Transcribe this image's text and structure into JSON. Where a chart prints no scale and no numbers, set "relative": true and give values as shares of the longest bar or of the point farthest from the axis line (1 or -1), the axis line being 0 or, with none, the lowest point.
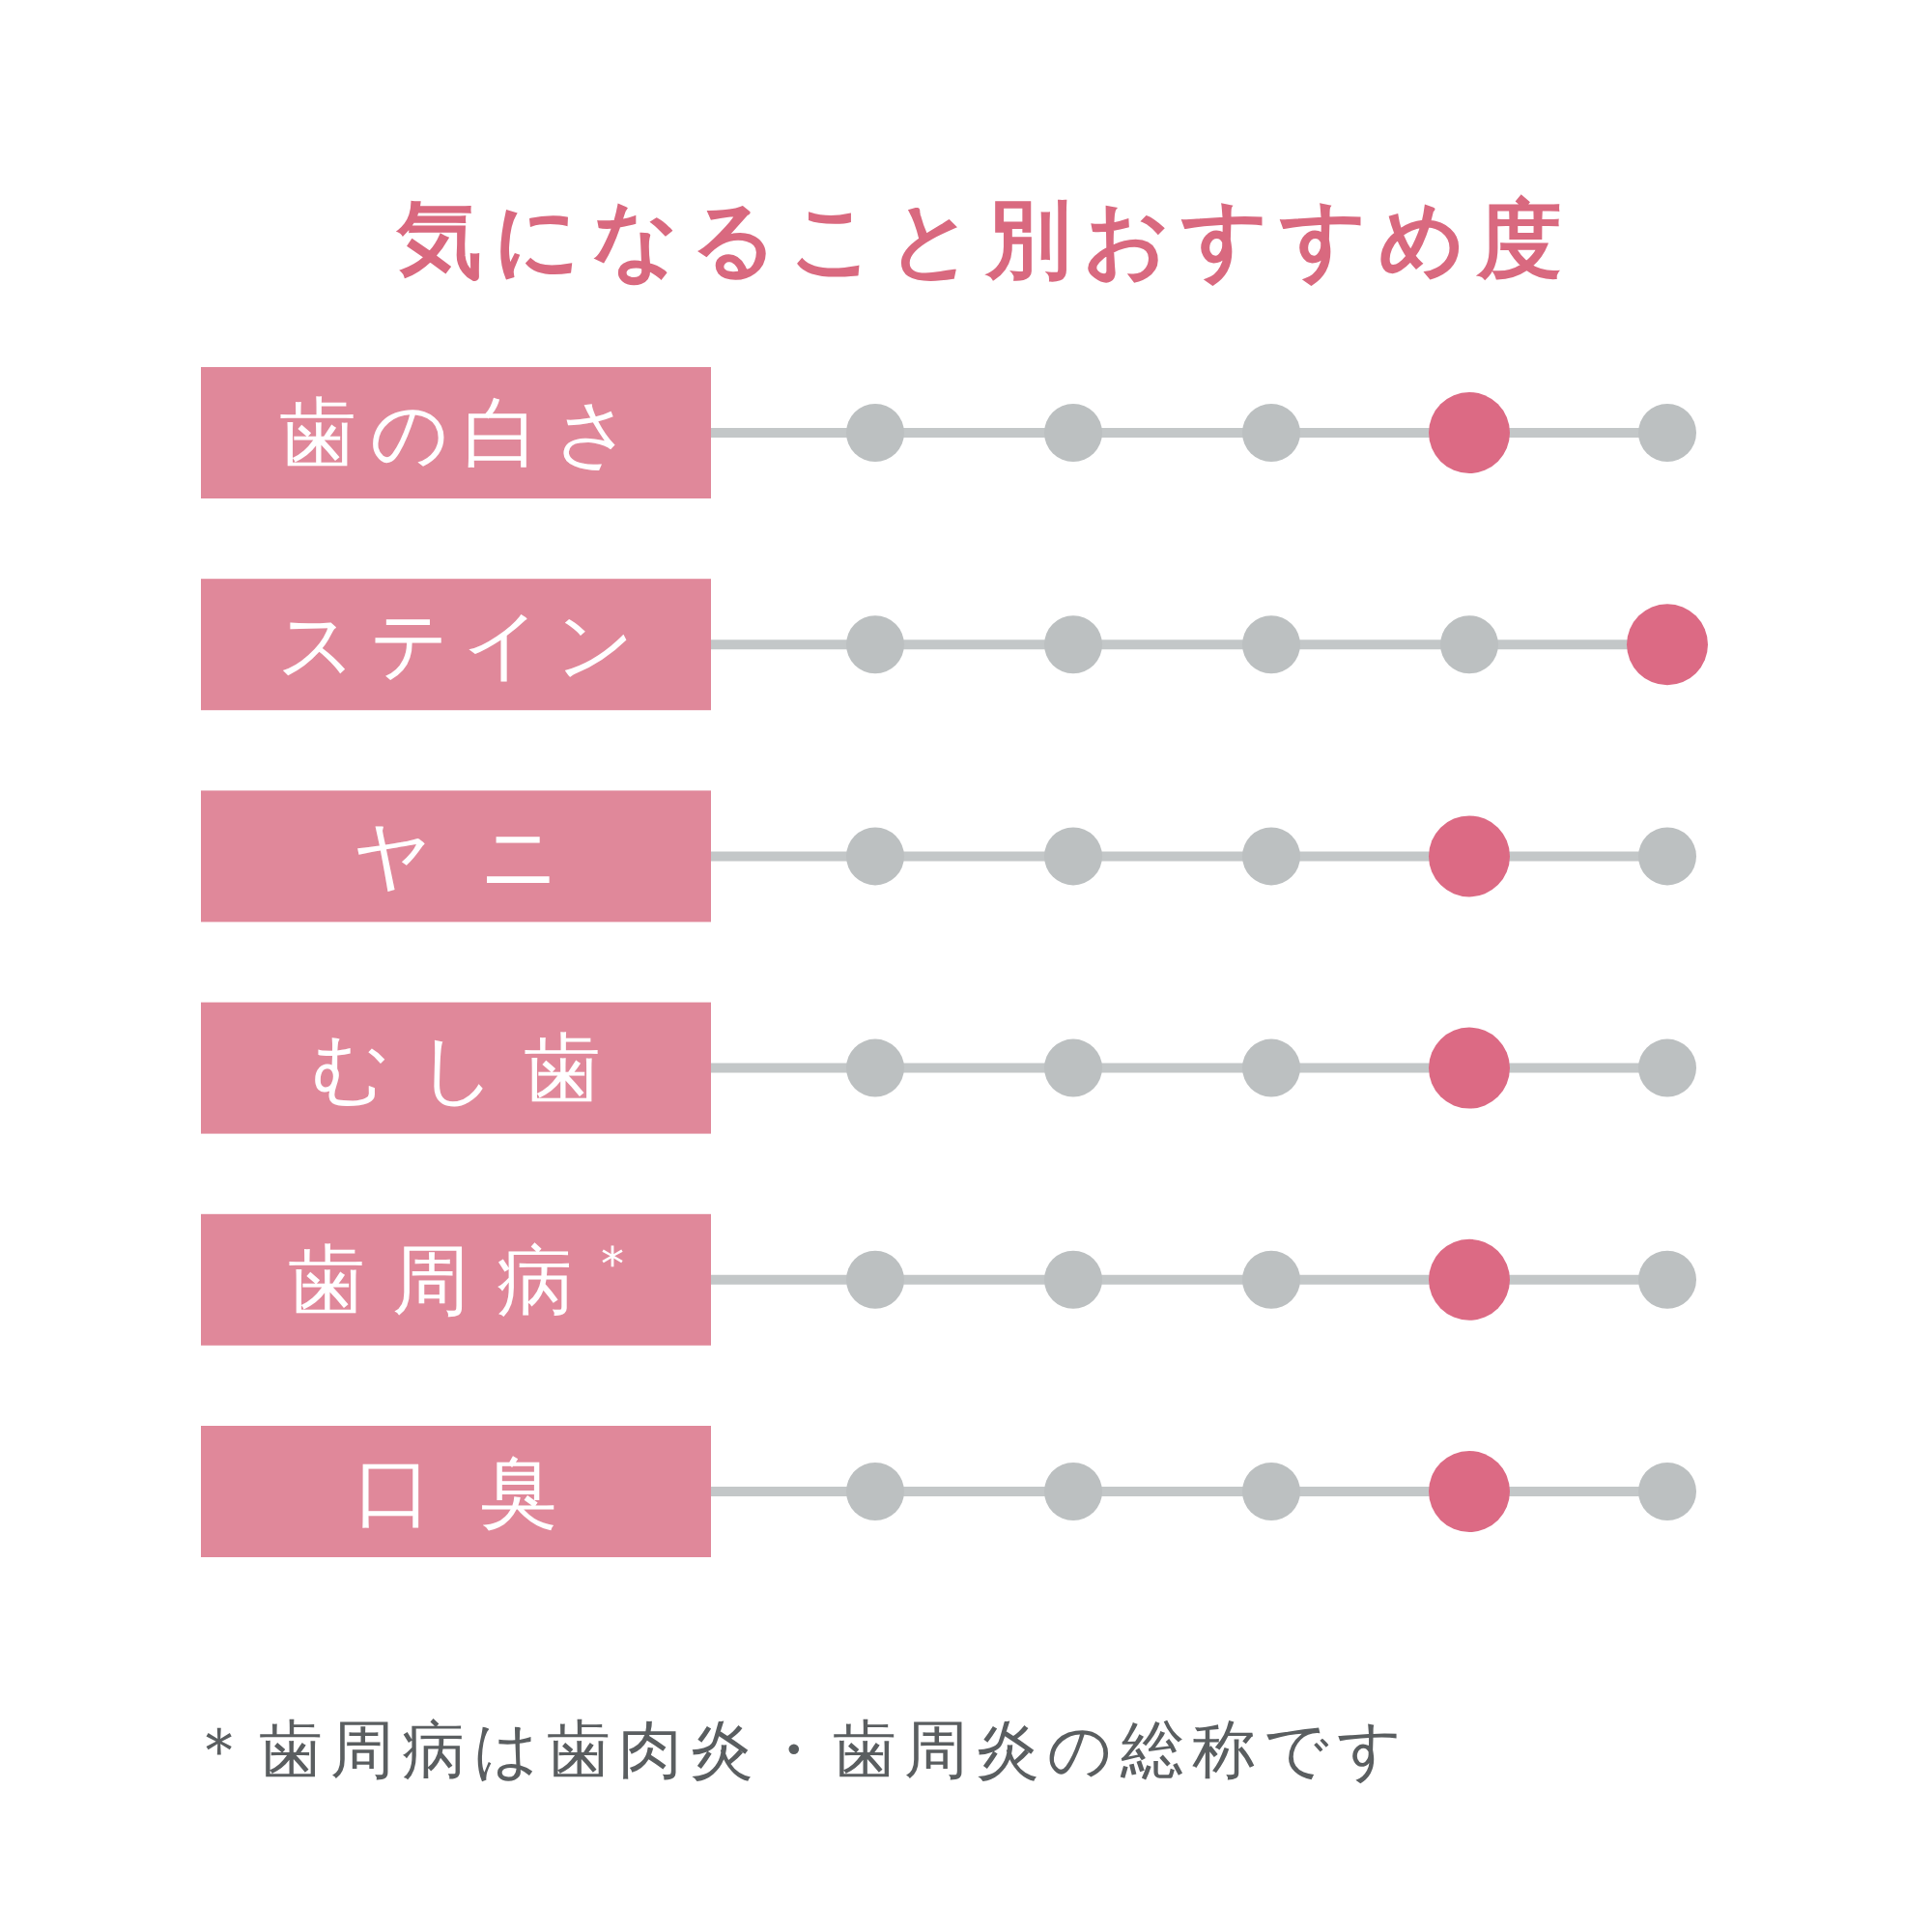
{
  "chart_data": {
    "type": "scatter",
    "orientation": "horizontal",
    "relative": true,
    "marker": "circle",
    "grid": "y",
    "title": "気になること別おすすめ度",
    "categories": [
      "歯の白さ",
      "ステイン",
      "ヤニ",
      "むし歯",
      "歯周病$^{*}$",
      "口臭"
    ],
    "series": [
      {
        "type": "scatter",
        "color": "#bcc0c1",
        "values": [
          0,
          0,
          0,
          0,
          0,
          0
        ]
      },
      {
        "type": "scatter",
        "color": "#bcc0c1",
        "values": [
          0.25,
          0.25,
          0.25,
          0.25,
          0.25,
          0.25
        ]
      },
      {
        "type": "scatter",
        "color": "#bcc0c1",
        "values": [
          0.5,
          0.5,
          0.5,
          0.5,
          0.5,
          0.5
        ]
      },
      {
        "type": "scatter",
        "color": "#bcc0c1",
        "values": [
          null,
          0.75,
          null,
          null,
          null,
          null
        ]
      },
      {
        "type": "scatter",
        "color": "#bcc0c1",
        "values": [
          1,
          null,
          1,
          1,
          1,
          1
        ]
      },
      {
        "type": "scatter",
        "color": "#dc6a84",
        "values": [
          0.75,
          1,
          0.75,
          0.75,
          0.75,
          0.75
        ]
      }
    ],
    "annotations": [
      "＊歯周病は歯肉炎・歯周炎の総称です"
    ]
  }
}
